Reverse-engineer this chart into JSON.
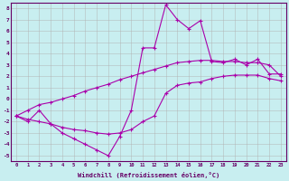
{
  "xlabel": "Windchill (Refroidissement éolien,°C)",
  "background_color": "#c8eef0",
  "grid_color": "#b0b0b0",
  "line_color": "#aa00aa",
  "xlim": [
    -0.5,
    23.5
  ],
  "ylim": [
    -5.5,
    8.5
  ],
  "xticks": [
    0,
    1,
    2,
    3,
    4,
    5,
    6,
    7,
    8,
    9,
    10,
    11,
    12,
    13,
    14,
    15,
    16,
    17,
    18,
    19,
    20,
    21,
    22,
    23
  ],
  "yticks": [
    -5,
    -4,
    -3,
    -2,
    -1,
    0,
    1,
    2,
    3,
    4,
    5,
    6,
    7,
    8
  ],
  "hours": [
    0,
    1,
    2,
    3,
    4,
    5,
    6,
    7,
    8,
    9,
    10,
    11,
    12,
    13,
    14,
    15,
    16,
    17,
    18,
    19,
    20,
    21,
    22,
    23
  ],
  "main_line": [
    -1.5,
    -2.0,
    -1.0,
    -2.2,
    -3.0,
    -3.5,
    -4.0,
    -4.5,
    -5.0,
    -3.3,
    -1.0,
    4.5,
    4.5,
    8.3,
    7.0,
    6.2,
    6.9,
    3.3,
    3.2,
    3.5,
    3.0,
    3.5,
    2.2,
    2.2
  ],
  "upper_line": [
    -1.5,
    -1.0,
    -0.5,
    -0.3,
    0.0,
    0.3,
    0.7,
    1.0,
    1.3,
    1.7,
    2.0,
    2.3,
    2.6,
    2.9,
    3.2,
    3.3,
    3.4,
    3.4,
    3.3,
    3.3,
    3.2,
    3.2,
    3.0,
    2.0
  ],
  "lower_line": [
    -1.5,
    -1.8,
    -2.0,
    -2.2,
    -2.5,
    -2.7,
    -2.8,
    -3.0,
    -3.1,
    -3.0,
    -2.7,
    -2.0,
    -1.5,
    0.5,
    1.2,
    1.4,
    1.5,
    1.8,
    2.0,
    2.1,
    2.1,
    2.1,
    1.8,
    1.6
  ]
}
